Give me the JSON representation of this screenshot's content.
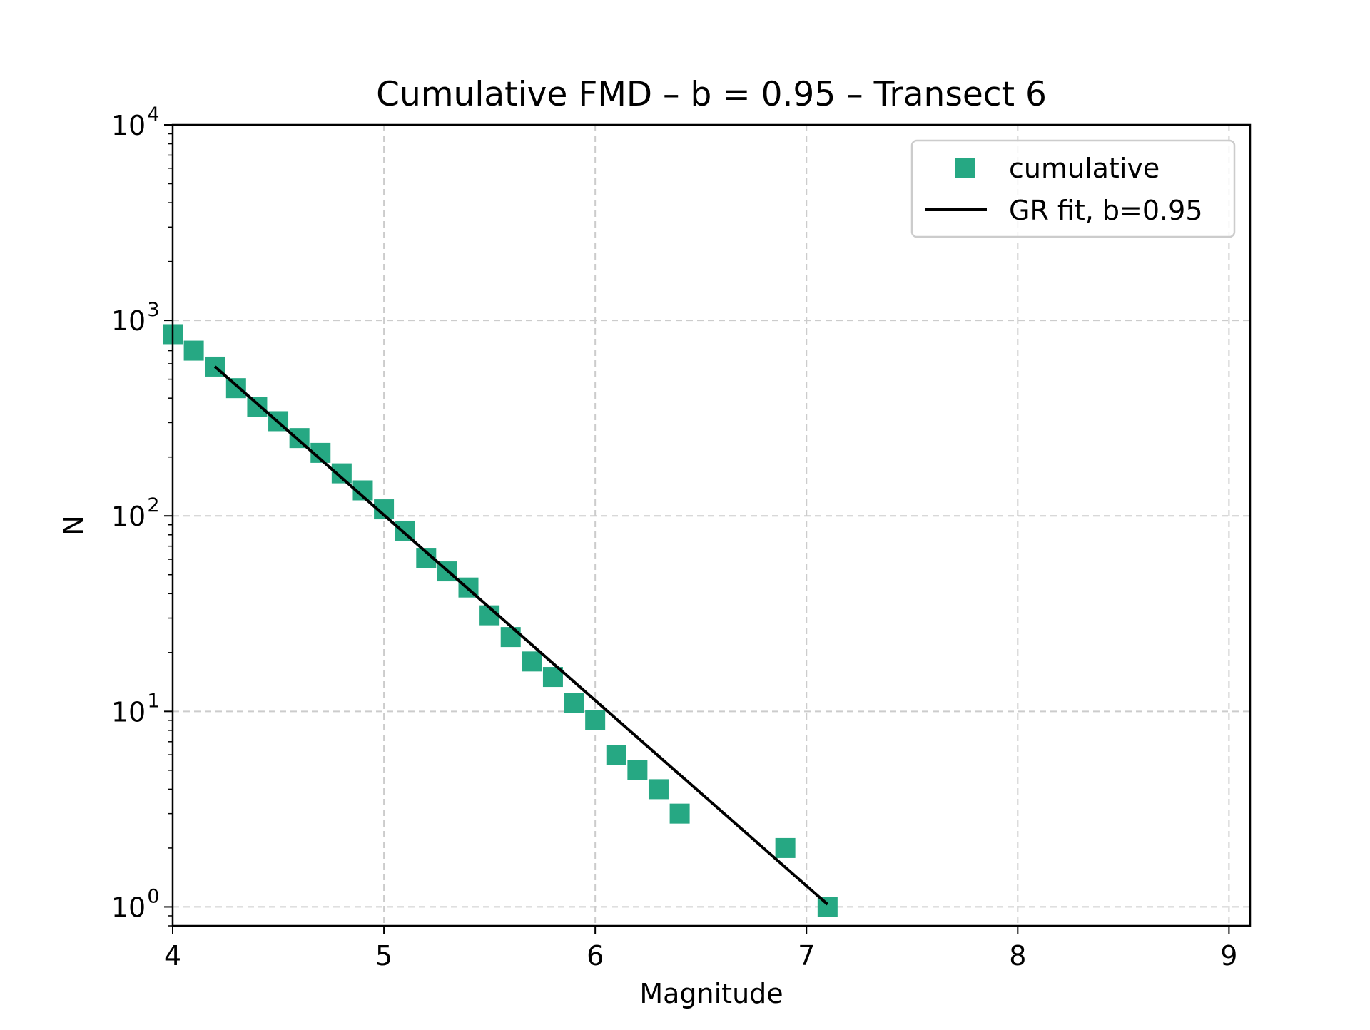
{
  "chart_data": {
    "type": "scatter",
    "title": "Cumulative FMD – b = 0.95 – Transect 6",
    "xlabel": "Magnitude",
    "ylabel": "N",
    "xlim": [
      4.0,
      9.1
    ],
    "ylim": [
      0.8,
      10000
    ],
    "y_scale": "log",
    "x_ticks": [
      "4",
      "5",
      "6",
      "7",
      "8",
      "9"
    ],
    "y_ticks": [
      {
        "base": "10",
        "exp": "0"
      },
      {
        "base": "10",
        "exp": "1"
      },
      {
        "base": "10",
        "exp": "2"
      },
      {
        "base": "10",
        "exp": "3"
      },
      {
        "base": "10",
        "exp": "4"
      }
    ],
    "grid": true,
    "legend_position": "top-right",
    "series": [
      {
        "name": "cumulative",
        "kind": "scatter",
        "marker": "square",
        "color": "#26a883",
        "points": [
          [
            4.0,
            850
          ],
          [
            4.1,
            700
          ],
          [
            4.2,
            580
          ],
          [
            4.3,
            450
          ],
          [
            4.4,
            360
          ],
          [
            4.5,
            305
          ],
          [
            4.6,
            250
          ],
          [
            4.7,
            210
          ],
          [
            4.8,
            165
          ],
          [
            4.9,
            135
          ],
          [
            5.0,
            108
          ],
          [
            5.1,
            84
          ],
          [
            5.2,
            61
          ],
          [
            5.3,
            52
          ],
          [
            5.4,
            43
          ],
          [
            5.5,
            31
          ],
          [
            5.6,
            24
          ],
          [
            5.7,
            18
          ],
          [
            5.8,
            15
          ],
          [
            5.9,
            11
          ],
          [
            6.0,
            9
          ],
          [
            6.1,
            6
          ],
          [
            6.2,
            5
          ],
          [
            6.3,
            4
          ],
          [
            6.4,
            3
          ],
          [
            6.9,
            2
          ],
          [
            7.1,
            1
          ]
        ]
      },
      {
        "name": "GR fit, b=0.95",
        "kind": "line",
        "color": "#000000",
        "points": [
          [
            4.2,
            580
          ],
          [
            7.1,
            1.03
          ]
        ]
      }
    ]
  }
}
